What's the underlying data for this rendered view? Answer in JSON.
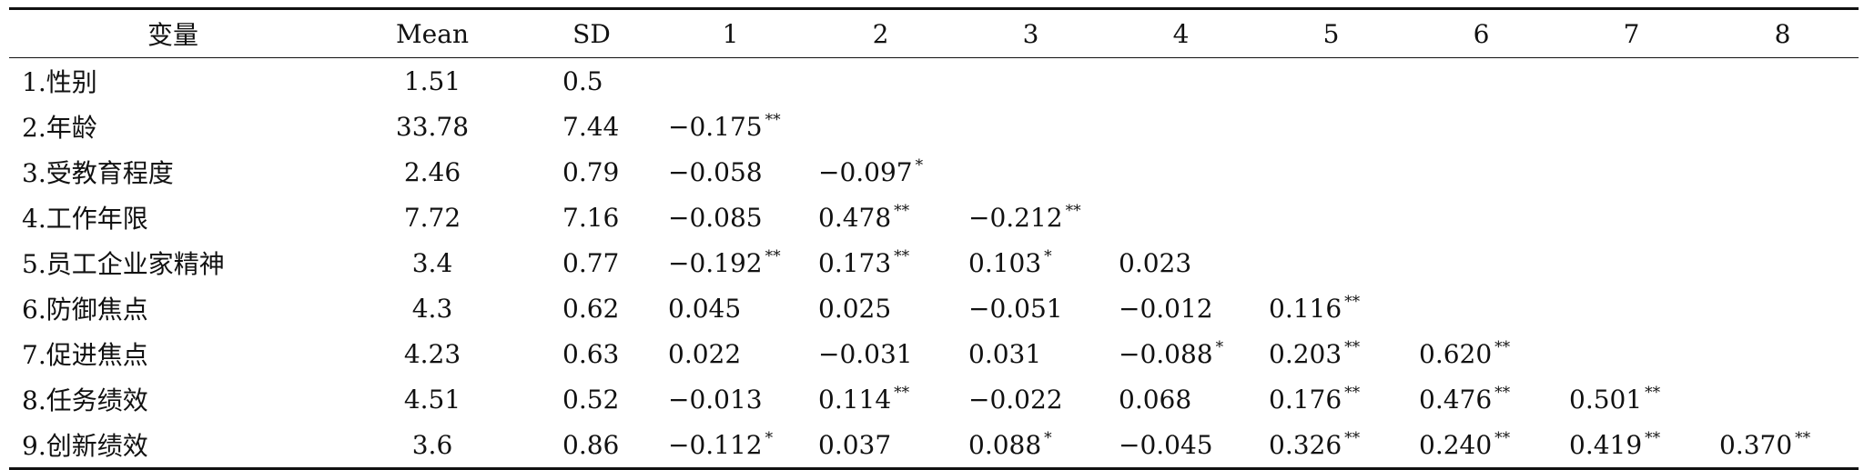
{
  "header": [
    "变量",
    "Mean",
    "SD",
    "1",
    "2",
    "3",
    "4",
    "5",
    "6",
    "7",
    "8"
  ],
  "rows": [
    {
      "name": "1.性别",
      "mean": "1.51",
      "sd": "0.5",
      "cells": []
    },
    {
      "name": "2.年龄",
      "mean": "33.78",
      "sd": "7.44",
      "cells": [
        {
          "v": "−0.175",
          "s": "**"
        }
      ]
    },
    {
      "name": "3.受教育程度",
      "mean": "2.46",
      "sd": "0.79",
      "cells": [
        {
          "v": "−0.058",
          "s": ""
        },
        {
          "v": "−0.097",
          "s": "*"
        }
      ]
    },
    {
      "name": "4.工作年限",
      "mean": "7.72",
      "sd": "7.16",
      "cells": [
        {
          "v": "−0.085",
          "s": ""
        },
        {
          "v": "0.478",
          "s": "**"
        },
        {
          "v": "−0.212",
          "s": "**"
        }
      ]
    },
    {
      "name": "5.员工企业家精神",
      "mean": "3.4",
      "sd": "0.77",
      "cells": [
        {
          "v": "−0.192",
          "s": "**"
        },
        {
          "v": "0.173",
          "s": "**"
        },
        {
          "v": "0.103",
          "s": "*"
        },
        {
          "v": "0.023",
          "s": ""
        }
      ]
    },
    {
      "name": "6.防御焦点",
      "mean": "4.3",
      "sd": "0.62",
      "cells": [
        {
          "v": "0.045",
          "s": ""
        },
        {
          "v": "0.025",
          "s": ""
        },
        {
          "v": "−0.051",
          "s": ""
        },
        {
          "v": "−0.012",
          "s": ""
        },
        {
          "v": "0.116",
          "s": "**"
        }
      ]
    },
    {
      "name": "7.促进焦点",
      "mean": "4.23",
      "sd": "0.63",
      "cells": [
        {
          "v": "0.022",
          "s": ""
        },
        {
          "v": "−0.031",
          "s": ""
        },
        {
          "v": "0.031",
          "s": ""
        },
        {
          "v": "−0.088",
          "s": "*"
        },
        {
          "v": "0.203",
          "s": "**"
        },
        {
          "v": "0.620",
          "s": "**"
        }
      ]
    },
    {
      "name": "8.任务绩效",
      "mean": "4.51",
      "sd": "0.52",
      "cells": [
        {
          "v": "−0.013",
          "s": ""
        },
        {
          "v": "0.114",
          "s": "**"
        },
        {
          "v": "−0.022",
          "s": ""
        },
        {
          "v": "0.068",
          "s": ""
        },
        {
          "v": "0.176",
          "s": "**"
        },
        {
          "v": "0.476",
          "s": "**"
        },
        {
          "v": "0.501",
          "s": "**"
        }
      ]
    },
    {
      "name": "9.创新绩效",
      "mean": "3.6",
      "sd": "0.86",
      "cells": [
        {
          "v": "−0.112",
          "s": "*"
        },
        {
          "v": "0.037",
          "s": ""
        },
        {
          "v": "0.088",
          "s": "*"
        },
        {
          "v": "−0.045",
          "s": ""
        },
        {
          "v": "0.326",
          "s": "**"
        },
        {
          "v": "0.240",
          "s": "**"
        },
        {
          "v": "0.419",
          "s": "**"
        },
        {
          "v": "0.370",
          "s": "**"
        }
      ]
    }
  ]
}
